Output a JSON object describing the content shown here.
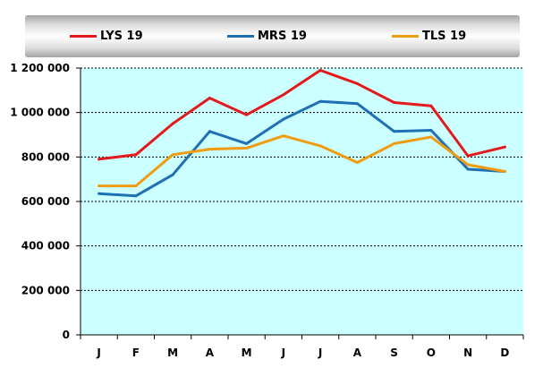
{
  "chart_data": {
    "type": "line",
    "categories": [
      "J",
      "F",
      "M",
      "A",
      "M",
      "J",
      "J",
      "A",
      "S",
      "O",
      "N",
      "D"
    ],
    "series": [
      {
        "name": "LYS 19",
        "color": "#e31a1c",
        "values": [
          790000,
          810000,
          950000,
          1065000,
          990000,
          1080000,
          1190000,
          1130000,
          1045000,
          1030000,
          805000,
          845000
        ]
      },
      {
        "name": "MRS 19",
        "color": "#1f6fb5",
        "values": [
          635000,
          625000,
          720000,
          915000,
          860000,
          970000,
          1050000,
          1040000,
          915000,
          920000,
          745000,
          735000
        ]
      },
      {
        "name": "TLS 19",
        "color": "#f09c12",
        "values": [
          670000,
          670000,
          810000,
          835000,
          840000,
          895000,
          850000,
          775000,
          860000,
          890000,
          765000,
          735000
        ]
      }
    ],
    "yticks": [
      {
        "value": 0,
        "label": "0"
      },
      {
        "value": 200000,
        "label": "200 000"
      },
      {
        "value": 400000,
        "label": "400 000"
      },
      {
        "value": 600000,
        "label": "600 000"
      },
      {
        "value": 800000,
        "label": "800 000"
      },
      {
        "value": 1000000,
        "label": "1 000 000"
      },
      {
        "value": 1200000,
        "label": "1 200 000"
      }
    ],
    "ylim": [
      0,
      1200000
    ],
    "grid": true,
    "plot_background": "#ccffff",
    "legend_position": "top"
  }
}
